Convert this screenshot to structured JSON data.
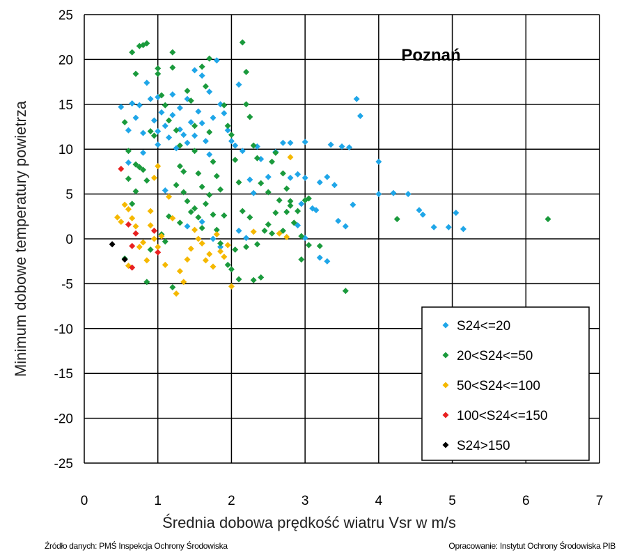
{
  "chart_data": {
    "type": "scatter",
    "title": "Poznań",
    "xlabel": "Średnia dobowa prędkość wiatru Vsr w m/s",
    "ylabel": "Minimum dobowe temperatury powietrza",
    "xlim": [
      0,
      7
    ],
    "ylim": [
      -25,
      25
    ],
    "x_ticks": [
      "0",
      "1",
      "2",
      "3",
      "4",
      "5",
      "6",
      "7"
    ],
    "y_ticks": [
      "25",
      "20",
      "15",
      "10",
      "5",
      "0",
      "-5",
      "-10",
      "-15",
      "-20",
      "-25"
    ],
    "grid": true,
    "legend_position": "bottom-right",
    "series": [
      {
        "name": "S24<=20",
        "color": "#1fa6e8",
        "marker": "diamond",
        "points": [
          [
            0.5,
            14.7
          ],
          [
            0.6,
            12.1
          ],
          [
            0.65,
            15.1
          ],
          [
            0.7,
            13.5
          ],
          [
            0.75,
            14.9
          ],
          [
            0.8,
            11.8
          ],
          [
            0.85,
            17.4
          ],
          [
            0.9,
            15.6
          ],
          [
            0.95,
            13.2
          ],
          [
            1.0,
            12.0
          ],
          [
            1.0,
            10.5
          ],
          [
            1.0,
            15.8
          ],
          [
            1.05,
            14.1
          ],
          [
            1.1,
            12.6
          ],
          [
            1.15,
            11.3
          ],
          [
            1.2,
            16.1
          ],
          [
            1.2,
            13.8
          ],
          [
            1.25,
            10.1
          ],
          [
            1.3,
            14.6
          ],
          [
            1.3,
            12.2
          ],
          [
            1.35,
            11.6
          ],
          [
            1.4,
            15.6
          ],
          [
            1.4,
            10.7
          ],
          [
            1.45,
            13.0
          ],
          [
            1.5,
            18.8
          ],
          [
            1.5,
            11.5
          ],
          [
            1.55,
            14.2
          ],
          [
            1.6,
            12.9
          ],
          [
            1.6,
            18.2
          ],
          [
            1.65,
            10.9
          ],
          [
            1.7,
            16.4
          ],
          [
            1.7,
            9.4
          ],
          [
            1.75,
            13.5
          ],
          [
            1.8,
            19.9
          ],
          [
            1.85,
            15.0
          ],
          [
            1.9,
            14.0
          ],
          [
            1.95,
            12.1
          ],
          [
            2.0,
            10.9
          ],
          [
            2.05,
            10.4
          ],
          [
            2.1,
            17.2
          ],
          [
            2.15,
            9.8
          ],
          [
            2.25,
            6.6
          ],
          [
            2.3,
            5.1
          ],
          [
            2.35,
            10.3
          ],
          [
            2.4,
            8.9
          ],
          [
            2.5,
            6.9
          ],
          [
            2.6,
            9.7
          ],
          [
            2.7,
            10.7
          ],
          [
            2.8,
            10.7
          ],
          [
            2.8,
            6.8
          ],
          [
            2.9,
            7.2
          ],
          [
            2.95,
            3.9
          ],
          [
            3.0,
            10.8
          ],
          [
            3.0,
            6.8
          ],
          [
            3.1,
            3.4
          ],
          [
            3.15,
            3.2
          ],
          [
            3.2,
            6.3
          ],
          [
            3.3,
            6.9
          ],
          [
            3.35,
            10.5
          ],
          [
            3.4,
            6.0
          ],
          [
            3.45,
            2.0
          ],
          [
            3.5,
            10.3
          ],
          [
            3.55,
            1.4
          ],
          [
            3.6,
            10.2
          ],
          [
            3.65,
            3.8
          ],
          [
            3.7,
            15.6
          ],
          [
            3.75,
            13.7
          ],
          [
            4.0,
            8.6
          ],
          [
            4.0,
            5.0
          ],
          [
            4.2,
            5.1
          ],
          [
            4.4,
            5.0
          ],
          [
            4.55,
            3.2
          ],
          [
            4.6,
            2.7
          ],
          [
            4.75,
            1.3
          ],
          [
            4.95,
            1.3
          ],
          [
            5.05,
            2.9
          ],
          [
            5.15,
            1.1
          ],
          [
            3.2,
            -2.1
          ],
          [
            3.3,
            -2.5
          ],
          [
            3.0,
            0.1
          ],
          [
            2.9,
            1.5
          ],
          [
            1.1,
            5.4
          ],
          [
            1.4,
            1.4
          ],
          [
            1.6,
            1.9
          ],
          [
            1.75,
            0.0
          ],
          [
            1.85,
            -0.9
          ],
          [
            2.1,
            0.9
          ],
          [
            2.2,
            0.1
          ],
          [
            0.6,
            8.5
          ],
          [
            0.8,
            9.6
          ]
        ]
      },
      {
        "name": "20<S24<=50",
        "color": "#1a9a3c",
        "marker": "diamond",
        "points": [
          [
            0.55,
            13.0
          ],
          [
            0.6,
            9.8
          ],
          [
            0.65,
            20.8
          ],
          [
            0.7,
            18.4
          ],
          [
            0.75,
            21.5
          ],
          [
            0.8,
            21.6
          ],
          [
            0.85,
            21.8
          ],
          [
            0.7,
            8.3
          ],
          [
            0.8,
            7.7
          ],
          [
            0.85,
            6.5
          ],
          [
            0.9,
            12.0
          ],
          [
            0.95,
            11.5
          ],
          [
            1.0,
            19.0
          ],
          [
            1.0,
            18.4
          ],
          [
            1.05,
            16.0
          ],
          [
            1.1,
            14.9
          ],
          [
            1.15,
            13.2
          ],
          [
            1.2,
            20.8
          ],
          [
            1.2,
            19.1
          ],
          [
            1.25,
            12.1
          ],
          [
            1.3,
            10.4
          ],
          [
            1.3,
            8.1
          ],
          [
            1.35,
            7.5
          ],
          [
            1.4,
            16.5
          ],
          [
            1.45,
            15.4
          ],
          [
            1.5,
            12.6
          ],
          [
            1.5,
            9.8
          ],
          [
            1.55,
            7.3
          ],
          [
            1.6,
            5.8
          ],
          [
            1.6,
            19.2
          ],
          [
            1.65,
            17.0
          ],
          [
            1.7,
            20.1
          ],
          [
            1.7,
            11.9
          ],
          [
            1.75,
            8.6
          ],
          [
            1.8,
            7.0
          ],
          [
            1.85,
            5.5
          ],
          [
            1.9,
            14.9
          ],
          [
            1.95,
            12.6
          ],
          [
            2.0,
            11.6
          ],
          [
            2.05,
            8.8
          ],
          [
            2.1,
            6.3
          ],
          [
            2.15,
            21.9
          ],
          [
            2.2,
            18.6
          ],
          [
            2.2,
            15.0
          ],
          [
            2.25,
            13.6
          ],
          [
            2.3,
            10.4
          ],
          [
            2.35,
            9.0
          ],
          [
            2.4,
            6.2
          ],
          [
            2.5,
            5.2
          ],
          [
            2.55,
            8.6
          ],
          [
            2.6,
            9.6
          ],
          [
            2.7,
            7.3
          ],
          [
            2.75,
            5.6
          ],
          [
            2.8,
            4.2
          ],
          [
            2.9,
            3.1
          ],
          [
            3.0,
            4.3
          ],
          [
            2.95,
            -2.3
          ],
          [
            3.05,
            -0.7
          ],
          [
            3.2,
            -0.8
          ],
          [
            3.55,
            -5.8
          ],
          [
            4.25,
            2.2
          ],
          [
            6.3,
            2.2
          ],
          [
            0.85,
            -4.8
          ],
          [
            0.9,
            -1.2
          ],
          [
            1.05,
            0.5
          ],
          [
            1.1,
            -0.3
          ],
          [
            1.2,
            -5.4
          ],
          [
            1.3,
            1.8
          ],
          [
            1.4,
            4.2
          ],
          [
            1.5,
            3.4
          ],
          [
            1.55,
            2.4
          ],
          [
            1.6,
            1.2
          ],
          [
            1.7,
            4.9
          ],
          [
            1.75,
            2.7
          ],
          [
            1.8,
            1.0
          ],
          [
            1.85,
            -0.5
          ],
          [
            1.95,
            -2.9
          ],
          [
            2.0,
            -3.4
          ],
          [
            2.05,
            -1.2
          ],
          [
            2.1,
            -4.5
          ],
          [
            2.2,
            -0.9
          ],
          [
            2.3,
            -4.6
          ],
          [
            2.35,
            -0.6
          ],
          [
            2.4,
            -4.3
          ],
          [
            2.5,
            1.6
          ],
          [
            2.55,
            0.6
          ],
          [
            2.6,
            2.9
          ],
          [
            2.7,
            0.9
          ],
          [
            2.8,
            3.7
          ],
          [
            2.85,
            1.8
          ],
          [
            2.95,
            0.3
          ],
          [
            3.05,
            4.5
          ],
          [
            0.6,
            6.7
          ],
          [
            0.65,
            3.9
          ],
          [
            0.7,
            5.3
          ],
          [
            0.75,
            8.0
          ],
          [
            0.55,
            -2.2
          ],
          [
            1.15,
            2.5
          ],
          [
            1.25,
            6.0
          ],
          [
            1.35,
            5.2
          ],
          [
            1.45,
            3.0
          ],
          [
            1.65,
            3.9
          ],
          [
            1.9,
            2.6
          ],
          [
            2.15,
            3.1
          ],
          [
            2.25,
            2.4
          ],
          [
            2.45,
            0.9
          ],
          [
            2.65,
            4.3
          ],
          [
            2.75,
            3.0
          ]
        ]
      },
      {
        "name": "50<S24<=100",
        "color": "#f5b800",
        "marker": "diamond",
        "points": [
          [
            0.45,
            2.4
          ],
          [
            0.5,
            1.9
          ],
          [
            0.55,
            3.8
          ],
          [
            0.6,
            3.3
          ],
          [
            0.65,
            2.3
          ],
          [
            0.7,
            1.4
          ],
          [
            0.75,
            -0.9
          ],
          [
            0.8,
            -0.4
          ],
          [
            0.85,
            -2.4
          ],
          [
            0.9,
            3.1
          ],
          [
            0.9,
            1.5
          ],
          [
            0.95,
            0.0
          ],
          [
            1.0,
            8.1
          ],
          [
            1.0,
            -0.9
          ],
          [
            1.05,
            0.3
          ],
          [
            1.1,
            -2.9
          ],
          [
            1.15,
            4.7
          ],
          [
            1.2,
            2.3
          ],
          [
            1.25,
            -6.1
          ],
          [
            1.3,
            -3.6
          ],
          [
            1.35,
            -4.8
          ],
          [
            1.4,
            -2.3
          ],
          [
            1.5,
            1.0
          ],
          [
            1.55,
            0.0
          ],
          [
            1.6,
            -0.5
          ],
          [
            1.65,
            -2.4
          ],
          [
            1.7,
            -1.7
          ],
          [
            1.75,
            -3.1
          ],
          [
            1.8,
            0.5
          ],
          [
            1.85,
            -1.4
          ],
          [
            1.9,
            -2.0
          ],
          [
            2.0,
            -5.3
          ],
          [
            2.3,
            0.8
          ],
          [
            2.75,
            0.2
          ],
          [
            2.8,
            9.1
          ],
          [
            0.6,
            -3.0
          ],
          [
            0.95,
            6.8
          ],
          [
            1.45,
            -1.1
          ],
          [
            1.95,
            -0.7
          ],
          [
            2.65,
            0.6
          ]
        ]
      },
      {
        "name": "100<S24<=150",
        "color": "#e82020",
        "marker": "diamond",
        "points": [
          [
            0.5,
            7.8
          ],
          [
            0.6,
            1.6
          ],
          [
            0.65,
            -0.8
          ],
          [
            0.65,
            -3.2
          ],
          [
            0.95,
            0.9
          ],
          [
            1.0,
            -1.5
          ],
          [
            0.7,
            0.6
          ]
        ]
      },
      {
        "name": "S24>150",
        "color": "#000000",
        "marker": "diamond",
        "points": [
          [
            0.38,
            -0.6
          ],
          [
            0.55,
            -2.3
          ]
        ]
      }
    ]
  },
  "footer": {
    "source": "Źródło danych: PMŚ Inspekcja Ochrony Środowiska",
    "author": "Opracowanie: Instytut Ochrony Środowiska PIB"
  }
}
